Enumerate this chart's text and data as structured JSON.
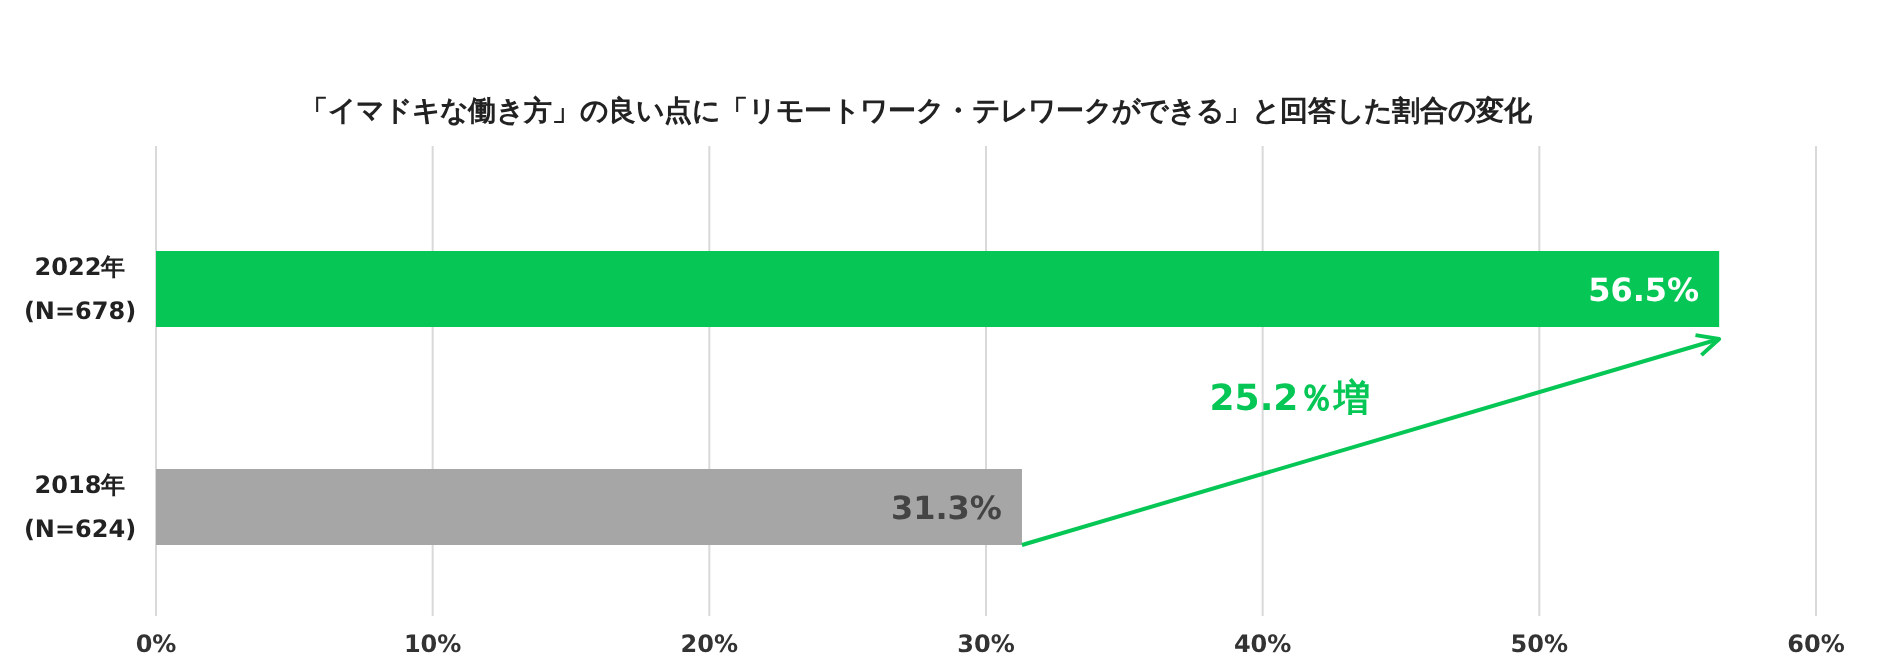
{
  "chart_data": {
    "type": "bar",
    "orientation": "horizontal",
    "title": "「イマドキな働き方」の良い点に「リモートワーク・テレワークができる」と回答した割合の変化",
    "categories": [
      "2022年\n(N=678)",
      "2018年\n(N=624)"
    ],
    "values": [
      56.5,
      31.3
    ],
    "colors": [
      "#06c755",
      "#a6a6a6"
    ],
    "value_labels": [
      "56.5%",
      "31.3%"
    ],
    "xlim": [
      0,
      60
    ],
    "xticks": [
      {
        "value": 0,
        "label": "0%"
      },
      {
        "value": 10,
        "label": "10%"
      },
      {
        "value": 20,
        "label": "20%"
      },
      {
        "value": 30,
        "label": "30%"
      },
      {
        "value": 40,
        "label": "40%"
      },
      {
        "value": 50,
        "label": "50%"
      },
      {
        "value": 60,
        "label": "60%"
      }
    ],
    "grid": "x",
    "annotations": [
      "25.2％増"
    ]
  }
}
